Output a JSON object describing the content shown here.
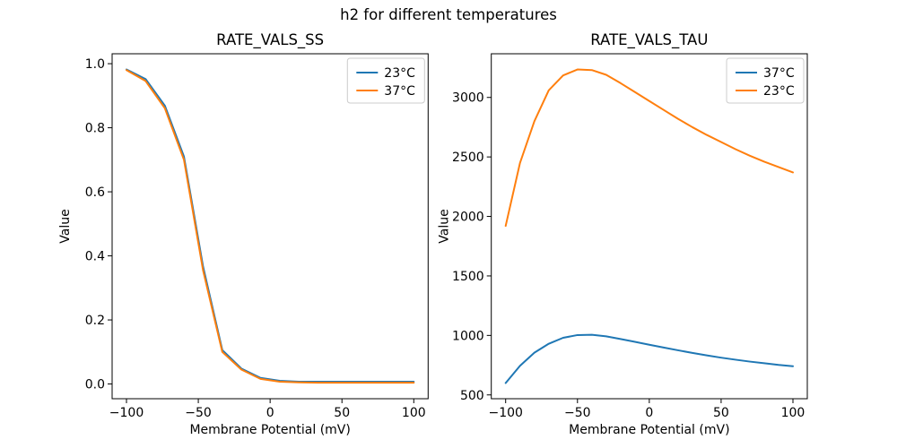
{
  "suptitle": "h2 for different temperatures",
  "text_color": "#000000",
  "background_color": "#ffffff",
  "legend_frame_color": "#cccccc",
  "chart_data": [
    {
      "type": "line",
      "title": "RATE_VALS_SS",
      "xlabel": "Membrane Potential (mV)",
      "ylabel": "Value",
      "xlim": [
        -110,
        110
      ],
      "ylim": [
        -0.046,
        1.031
      ],
      "grid": false,
      "legend_position": "upper right",
      "xticks": {
        "values": [
          -100,
          -50,
          0,
          50,
          100
        ],
        "labels": [
          "−100",
          "−50",
          "0",
          "50",
          "100"
        ]
      },
      "yticks": {
        "values": [
          0.0,
          0.2,
          0.4,
          0.6,
          0.8,
          1.0
        ],
        "labels": [
          "0.0",
          "0.2",
          "0.4",
          "0.6",
          "0.8",
          "1.0"
        ]
      },
      "series": [
        {
          "name": "23°C",
          "color": "#1f77b4",
          "x": [
            -100,
            -86.7,
            -73.3,
            -60,
            -46.7,
            -33.3,
            -20,
            -6.7,
            6.7,
            20,
            33.3,
            46.7,
            60,
            73.3,
            86.7,
            100
          ],
          "y": [
            0.982,
            0.952,
            0.869,
            0.71,
            0.367,
            0.106,
            0.048,
            0.019,
            0.01,
            0.007,
            0.007,
            0.007,
            0.007,
            0.007,
            0.007,
            0.007
          ]
        },
        {
          "name": "37°C",
          "color": "#ff7f0e",
          "x": [
            -100,
            -86.7,
            -73.3,
            -60,
            -46.7,
            -33.3,
            -20,
            -6.7,
            6.7,
            20,
            33.3,
            46.7,
            60,
            73.3,
            86.7,
            100
          ],
          "y": [
            0.98,
            0.946,
            0.861,
            0.7,
            0.355,
            0.1,
            0.045,
            0.016,
            0.007,
            0.005,
            0.004,
            0.004,
            0.004,
            0.004,
            0.004,
            0.004
          ]
        }
      ]
    },
    {
      "type": "line",
      "title": "RATE_VALS_TAU",
      "xlabel": "Membrane Potential (mV)",
      "ylabel": "Value",
      "xlim": [
        -110,
        110
      ],
      "ylim": [
        468,
        3367
      ],
      "grid": false,
      "legend_position": "upper right",
      "xticks": {
        "values": [
          -100,
          -50,
          0,
          50,
          100
        ],
        "labels": [
          "−100",
          "−50",
          "0",
          "50",
          "100"
        ]
      },
      "yticks": {
        "values": [
          500,
          1000,
          1500,
          2000,
          2500,
          3000
        ],
        "labels": [
          "500",
          "1000",
          "1500",
          "2000",
          "2500",
          "3000"
        ]
      },
      "series": [
        {
          "name": "37°C",
          "color": "#1f77b4",
          "x": [
            -100,
            -90,
            -80,
            -70,
            -60,
            -50,
            -40,
            -30,
            -20,
            -10,
            0,
            10,
            20,
            30,
            40,
            50,
            60,
            70,
            80,
            90,
            100
          ],
          "y": [
            600,
            745,
            855,
            930,
            980,
            1003,
            1005,
            992,
            970,
            946,
            922,
            898,
            875,
            853,
            832,
            813,
            796,
            780,
            766,
            752,
            741
          ]
        },
        {
          "name": "23°C",
          "color": "#ff7f0e",
          "x": [
            -100,
            -90,
            -80,
            -70,
            -60,
            -50,
            -40,
            -30,
            -20,
            -10,
            0,
            10,
            20,
            30,
            40,
            50,
            60,
            70,
            80,
            90,
            100
          ],
          "y": [
            1920,
            2450,
            2800,
            3060,
            3185,
            3235,
            3230,
            3190,
            3120,
            3045,
            2970,
            2895,
            2820,
            2750,
            2685,
            2625,
            2565,
            2510,
            2460,
            2415,
            2370
          ]
        }
      ]
    }
  ]
}
